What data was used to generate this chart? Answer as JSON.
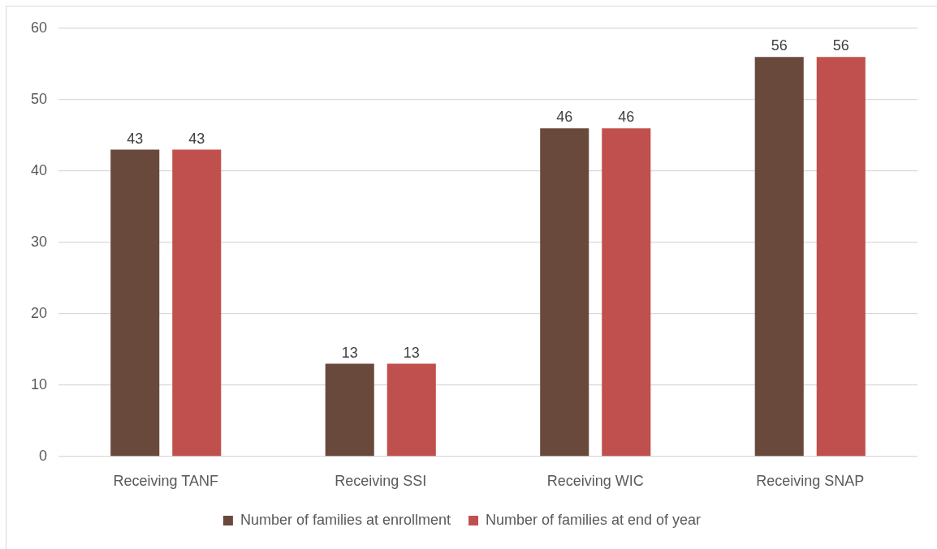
{
  "chart_data": {
    "type": "bar",
    "categories": [
      "Receiving TANF",
      "Receiving SSI",
      "Receiving WIC",
      "Receiving SNAP"
    ],
    "series": [
      {
        "name": "Number of families at enrollment",
        "color": "#68493b",
        "values": [
          43,
          13,
          46,
          56
        ]
      },
      {
        "name": "Number of families at end of year",
        "color": "#c0504d",
        "values": [
          43,
          13,
          46,
          56
        ]
      }
    ],
    "ylim": [
      0,
      60
    ],
    "yticks": [
      0,
      10,
      20,
      30,
      40,
      50,
      60
    ],
    "grid": "y",
    "legend": "bottom",
    "data_labels": true
  }
}
